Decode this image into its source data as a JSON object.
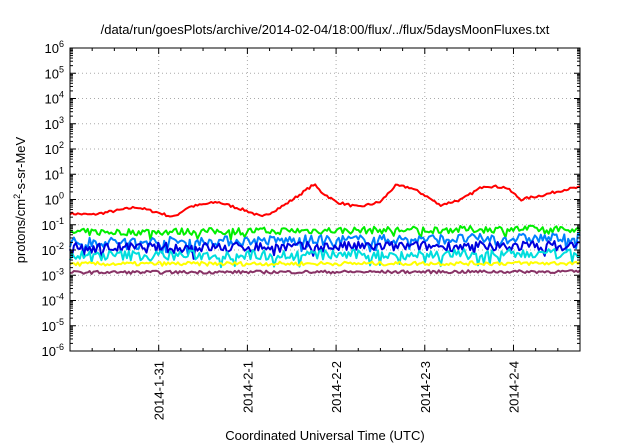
{
  "chart_data": {
    "type": "line",
    "title": "/data/run/goesPlots/archive/2014-02-04/18:00/flux/../flux/5daysMoonFluxes.txt",
    "xlabel": "Coordinated Universal Time (UTC)",
    "ylabel": {
      "base": "protons/cm",
      "sup": "2",
      "rest": "-s-sr-MeV"
    },
    "x_range": [
      "2014-01-30 00:00",
      "2014-02-04 18:00"
    ],
    "x_ticks": [
      "2014-1-31",
      "2014-2-1",
      "2014-2-2",
      "2014-2-3",
      "2014-2-4"
    ],
    "y_scale": "log",
    "ylim": [
      1e-06,
      1000000
    ],
    "y_tick_base": "10",
    "y_tick_exponents": [
      "-6",
      "-5",
      "-4",
      "-3",
      "-2",
      "-1",
      "0",
      "1",
      "2",
      "3",
      "4",
      "5",
      "6"
    ],
    "grid": true,
    "series": [
      {
        "color": "#ff0000",
        "noise": 0.05,
        "points": [
          [
            "2014-01-30 00:00",
            0.28
          ],
          [
            "2014-01-30 06:00",
            0.25
          ],
          [
            "2014-01-30 12:00",
            0.35
          ],
          [
            "2014-01-30 18:00",
            0.5
          ],
          [
            "2014-01-31 00:00",
            0.3
          ],
          [
            "2014-01-31 04:00",
            0.2
          ],
          [
            "2014-01-31 08:00",
            0.5
          ],
          [
            "2014-01-31 16:00",
            0.8
          ],
          [
            "2014-02-01 00:00",
            0.35
          ],
          [
            "2014-02-01 04:00",
            0.2
          ],
          [
            "2014-02-01 10:00",
            0.6
          ],
          [
            "2014-02-01 14:00",
            1.5
          ],
          [
            "2014-02-01 18:00",
            4.0
          ],
          [
            "2014-02-01 20:00",
            2.0
          ],
          [
            "2014-02-02 00:00",
            0.8
          ],
          [
            "2014-02-02 06:00",
            0.5
          ],
          [
            "2014-02-02 12:00",
            0.8
          ],
          [
            "2014-02-02 16:00",
            3.5
          ],
          [
            "2014-02-02 20:00",
            3.0
          ],
          [
            "2014-02-03 00:00",
            1.5
          ],
          [
            "2014-02-03 04:00",
            0.6
          ],
          [
            "2014-02-03 10:00",
            1.0
          ],
          [
            "2014-02-03 16:00",
            3.5
          ],
          [
            "2014-02-03 22:00",
            3.0
          ],
          [
            "2014-02-04 02:00",
            1.0
          ],
          [
            "2014-02-04 08:00",
            1.5
          ],
          [
            "2014-02-04 14:00",
            2.5
          ],
          [
            "2014-02-04 18:00",
            3.0
          ]
        ]
      },
      {
        "color": "#00ee00",
        "noise": 0.14,
        "points": [
          [
            "2014-01-30 00:00",
            0.05
          ],
          [
            "2014-02-04 18:00",
            0.07
          ]
        ]
      },
      {
        "color": "#0080ff",
        "noise": 0.2,
        "points": [
          [
            "2014-01-30 00:00",
            0.02
          ],
          [
            "2014-02-04 18:00",
            0.03
          ]
        ]
      },
      {
        "color": "#0000dd",
        "noise": 0.2,
        "points": [
          [
            "2014-01-30 00:00",
            0.012
          ],
          [
            "2014-02-04 18:00",
            0.015
          ]
        ]
      },
      {
        "color": "#00dddd",
        "noise": 0.2,
        "points": [
          [
            "2014-01-30 00:00",
            0.006
          ],
          [
            "2014-02-04 18:00",
            0.007
          ]
        ]
      },
      {
        "color": "#ffff00",
        "noise": 0.08,
        "points": [
          [
            "2014-01-30 00:00",
            0.0028
          ],
          [
            "2014-02-04 18:00",
            0.003
          ]
        ]
      },
      {
        "color": "#883366",
        "noise": 0.06,
        "points": [
          [
            "2014-01-30 00:00",
            0.0013
          ],
          [
            "2014-02-04 18:00",
            0.0014
          ]
        ]
      }
    ]
  }
}
